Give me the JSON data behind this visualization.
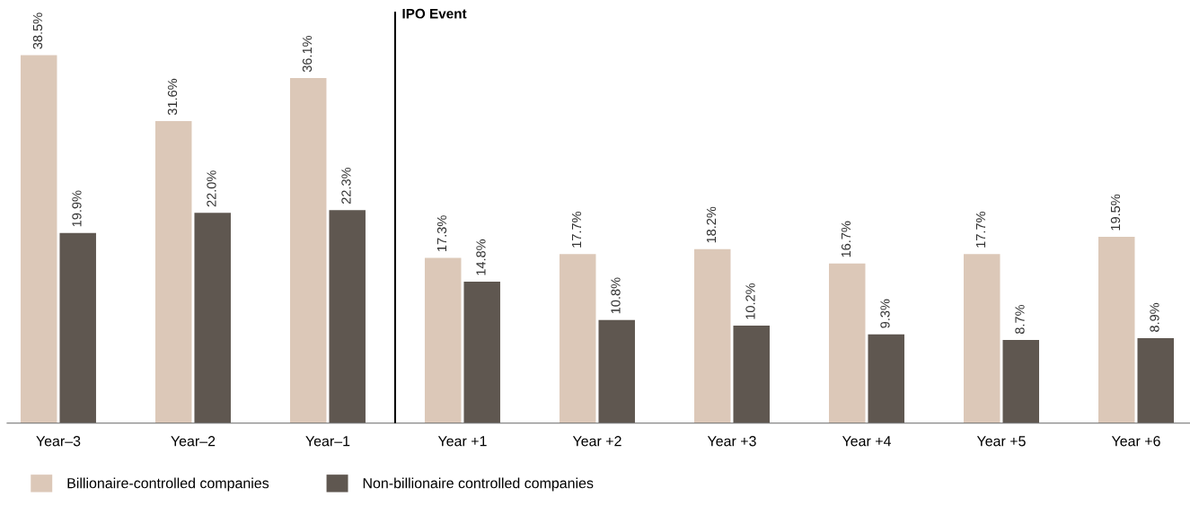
{
  "chart_data": {
    "type": "bar",
    "categories": [
      "Year–3",
      "Year–2",
      "Year–1",
      "Year +1",
      "Year +2",
      "Year +3",
      "Year +4",
      "Year +5",
      "Year +6"
    ],
    "series": [
      {
        "name": "Billionaire-controlled companies",
        "color": "#dcc8b8",
        "values": [
          38.5,
          31.6,
          36.1,
          17.3,
          17.7,
          18.2,
          16.7,
          17.7,
          19.5
        ],
        "value_labels": [
          "38.5%",
          "31.6%",
          "36.1%",
          "17.3%",
          "17.7%",
          "18.2%",
          "16.7%",
          "17.7%",
          "19.5%"
        ]
      },
      {
        "name": "Non-billionaire controlled companies",
        "color": "#5f5750",
        "values": [
          19.9,
          22.0,
          22.3,
          14.8,
          10.8,
          10.2,
          9.3,
          8.7,
          8.9
        ],
        "value_labels": [
          "19.9%",
          "22.0%",
          "22.3%",
          "14.8%",
          "10.8%",
          "10.2%",
          "9.3%",
          "8.7%",
          "8.9%"
        ]
      }
    ],
    "annotations": [
      "IPO Event"
    ],
    "legend": "bottom left",
    "grid": false
  }
}
